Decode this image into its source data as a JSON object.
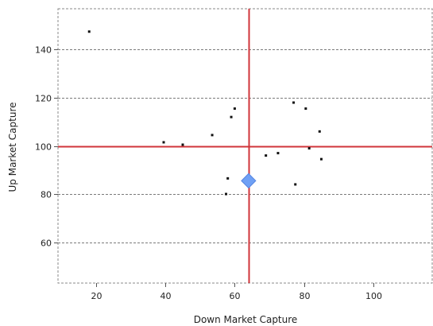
{
  "chart_data": {
    "type": "scatter",
    "title": "",
    "xlabel": "Down Market Capture",
    "ylabel": "Up Market Capture",
    "xlim": [
      9,
      117
    ],
    "ylim": [
      43,
      157
    ],
    "x_ticks": [
      20,
      40,
      60,
      80,
      100
    ],
    "y_ticks": [
      60,
      80,
      100,
      120,
      140
    ],
    "grid": "horizontal dashed",
    "legend": "none",
    "reference_lines": {
      "x": 64,
      "y": 100,
      "color": "#d0343a"
    },
    "highlight_point": {
      "x": 64,
      "y": 85.5,
      "color": "#6fa0f5"
    },
    "series": [
      {
        "color": "#111111",
        "points": [
          [
            18,
            147.5
          ],
          [
            39.5,
            101.5
          ],
          [
            45,
            100.5
          ],
          [
            53.5,
            104.5
          ],
          [
            57.5,
            80
          ],
          [
            58,
            86.5
          ],
          [
            59,
            112
          ],
          [
            60,
            115.5
          ],
          [
            69,
            96
          ],
          [
            72.5,
            97
          ],
          [
            77,
            118
          ],
          [
            77.5,
            84
          ],
          [
            80.5,
            115.5
          ],
          [
            81.5,
            99
          ],
          [
            84.5,
            106
          ],
          [
            85,
            94.5
          ]
        ]
      }
    ]
  }
}
